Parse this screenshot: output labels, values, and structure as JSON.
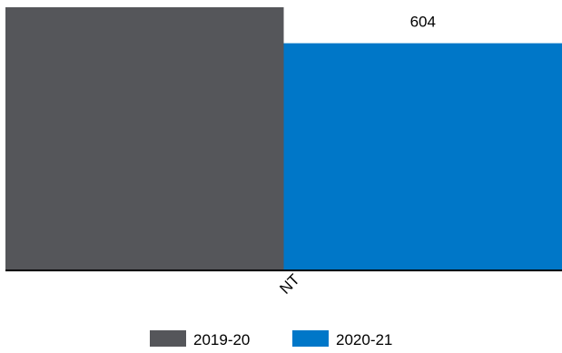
{
  "chart_data": {
    "type": "bar",
    "categories": [
      "NT"
    ],
    "series": [
      {
        "name": "2019-20",
        "values": [
          null
        ],
        "color": "#55565a"
      },
      {
        "name": "2020-21",
        "values": [
          604
        ],
        "color": "#0077c8"
      }
    ],
    "data_labels": [
      "",
      "604"
    ],
    "ylim": [
      0,
      700
    ],
    "title": "",
    "xlabel": "",
    "ylabel": "",
    "legend_position": "bottom-center",
    "grid": false,
    "x_tick_rotation": -45
  }
}
